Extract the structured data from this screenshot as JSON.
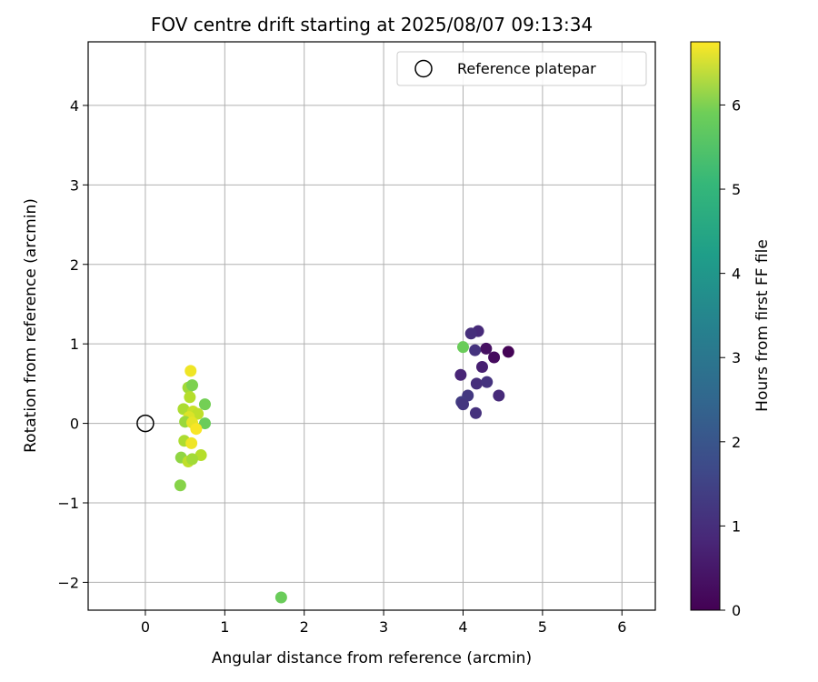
{
  "chart_data": {
    "type": "scatter",
    "title": "FOV centre drift starting at 2025/08/07 09:13:34",
    "xlabel": "Angular distance from reference (arcmin)",
    "ylabel": "Rotation from reference (arcmin)",
    "xlim": [
      -0.72,
      6.42
    ],
    "ylim": [
      -2.35,
      4.8
    ],
    "xticks": [
      0,
      1,
      2,
      3,
      4,
      5,
      6
    ],
    "yticks": [
      -2,
      -1,
      0,
      1,
      2,
      3,
      4
    ],
    "grid": true,
    "legend_position": "top-right",
    "reference": {
      "label": "Reference platepar",
      "x": 0,
      "y": 0
    },
    "colorbar": {
      "label": "Hours from first FF file",
      "colormap": "viridis",
      "range": [
        0,
        6.75
      ],
      "ticks": [
        0,
        1,
        2,
        3,
        4,
        5,
        6
      ]
    },
    "points": [
      {
        "x": 4.57,
        "y": 0.9,
        "c": 0.05
      },
      {
        "x": 4.39,
        "y": 0.83,
        "c": 0.2
      },
      {
        "x": 4.29,
        "y": 0.94,
        "c": 0.3
      },
      {
        "x": 4.24,
        "y": 0.71,
        "c": 0.6
      },
      {
        "x": 4.19,
        "y": 1.16,
        "c": 0.8
      },
      {
        "x": 4.1,
        "y": 1.13,
        "c": 0.9
      },
      {
        "x": 4.15,
        "y": 0.92,
        "c": 1.0
      },
      {
        "x": 3.97,
        "y": 0.61,
        "c": 0.7
      },
      {
        "x": 4.17,
        "y": 0.5,
        "c": 0.9
      },
      {
        "x": 4.3,
        "y": 0.52,
        "c": 1.0
      },
      {
        "x": 4.45,
        "y": 0.35,
        "c": 0.8
      },
      {
        "x": 4.06,
        "y": 0.35,
        "c": 1.1
      },
      {
        "x": 3.98,
        "y": 0.27,
        "c": 1.2
      },
      {
        "x": 4.0,
        "y": 0.24,
        "c": 1.05
      },
      {
        "x": 4.16,
        "y": 0.13,
        "c": 0.95
      },
      {
        "x": 4.0,
        "y": 0.96,
        "c": 5.2
      },
      {
        "x": 0.57,
        "y": 0.66,
        "c": 6.6
      },
      {
        "x": 0.54,
        "y": 0.45,
        "c": 5.8
      },
      {
        "x": 0.59,
        "y": 0.48,
        "c": 5.4
      },
      {
        "x": 0.56,
        "y": 0.33,
        "c": 6.0
      },
      {
        "x": 0.75,
        "y": 0.24,
        "c": 5.3
      },
      {
        "x": 0.48,
        "y": 0.18,
        "c": 5.9
      },
      {
        "x": 0.6,
        "y": 0.15,
        "c": 6.2
      },
      {
        "x": 0.66,
        "y": 0.12,
        "c": 6.1
      },
      {
        "x": 0.55,
        "y": 0.08,
        "c": 6.4
      },
      {
        "x": 0.5,
        "y": 0.02,
        "c": 5.7
      },
      {
        "x": 0.59,
        "y": 0.01,
        "c": 6.5
      },
      {
        "x": 0.75,
        "y": 0.0,
        "c": 5.2
      },
      {
        "x": 0.64,
        "y": -0.07,
        "c": 6.7
      },
      {
        "x": 0.49,
        "y": -0.22,
        "c": 5.9
      },
      {
        "x": 0.58,
        "y": -0.25,
        "c": 6.6
      },
      {
        "x": 0.7,
        "y": -0.4,
        "c": 6.0
      },
      {
        "x": 0.45,
        "y": -0.43,
        "c": 5.6
      },
      {
        "x": 0.54,
        "y": -0.48,
        "c": 6.1
      },
      {
        "x": 0.59,
        "y": -0.45,
        "c": 5.8
      },
      {
        "x": 0.44,
        "y": -0.78,
        "c": 5.5
      },
      {
        "x": 1.71,
        "y": -2.19,
        "c": 5.2
      }
    ]
  }
}
